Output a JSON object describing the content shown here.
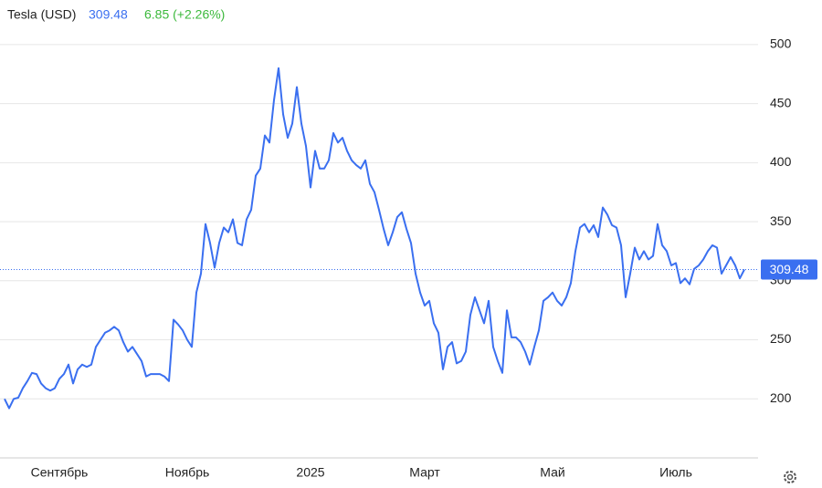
{
  "chart_data": {
    "type": "line",
    "title": "Tesla (USD)",
    "change": "6.85 (+2.26%)",
    "color": "#3a6ff0",
    "change_color": "#3cb93c",
    "values": [
      200,
      192,
      200,
      201,
      209,
      215,
      222,
      221,
      213,
      209,
      207,
      209,
      217,
      221,
      229,
      213,
      225,
      229,
      227,
      229,
      244,
      250,
      256,
      258,
      261,
      258,
      248,
      240,
      244,
      238,
      232,
      219,
      221,
      221,
      221,
      219,
      215,
      267,
      263,
      258,
      250,
      244,
      290,
      306,
      348,
      332,
      311,
      332,
      345,
      341,
      352,
      332,
      330,
      352,
      360,
      389,
      395,
      423,
      417,
      453,
      480,
      441,
      421,
      433,
      464,
      433,
      414,
      379,
      410,
      395,
      395,
      402,
      425,
      417,
      421,
      410,
      402,
      398,
      395,
      402,
      382,
      375,
      360,
      344,
      330,
      341,
      354,
      358,
      344,
      332,
      306,
      290,
      279,
      283,
      264,
      256,
      225,
      244,
      248,
      230,
      232,
      240,
      271,
      286,
      275,
      264,
      283,
      244,
      232,
      222,
      275,
      252,
      252,
      248,
      240,
      229,
      244,
      258,
      283,
      286,
      290,
      283,
      279,
      286,
      298,
      325,
      345,
      348,
      341,
      347,
      337,
      362,
      356,
      347,
      345,
      330,
      286,
      306,
      328,
      318,
      325,
      318,
      321,
      348,
      330,
      325,
      313,
      315,
      298,
      302,
      297,
      310,
      313,
      318,
      325,
      330,
      328,
      306,
      313,
      320,
      313,
      302,
      309.48
    ],
    "xlim": [
      -1,
      165
    ],
    "xticks": [
      {
        "value": 12,
        "label": "Сентябрь"
      },
      {
        "value": 40,
        "label": "Ноябрь"
      },
      {
        "value": 67,
        "label": "2025"
      },
      {
        "value": 92,
        "label": "Март"
      },
      {
        "value": 120,
        "label": "Май"
      },
      {
        "value": 147,
        "label": "Июль"
      }
    ],
    "ylim": [
      150,
      530
    ],
    "yticks": [
      200,
      250,
      300,
      350,
      400,
      450,
      500
    ],
    "grid": true
  }
}
